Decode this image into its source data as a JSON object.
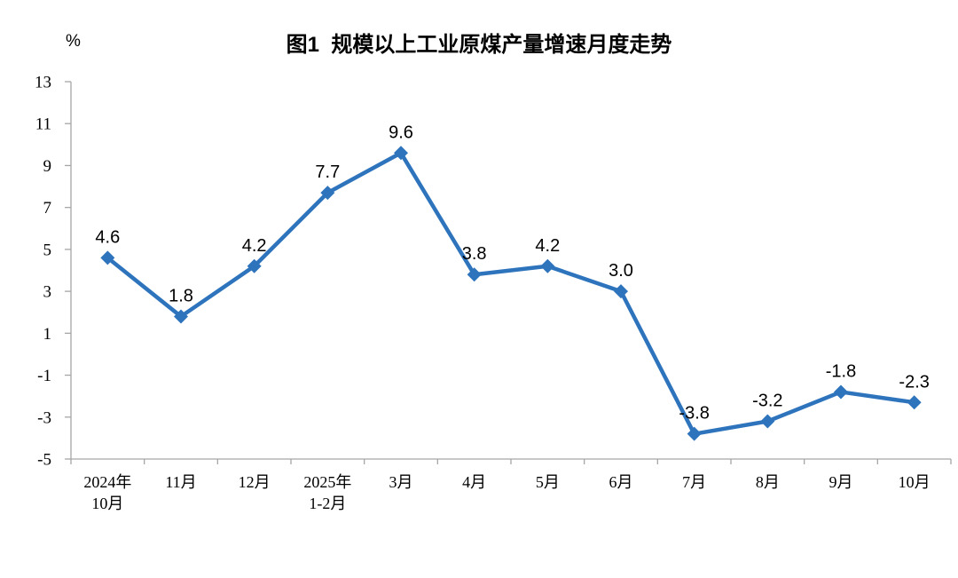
{
  "chart_data": {
    "type": "line",
    "title": "图1  规模以上工业原煤产量增速月度走势",
    "ylabel": "%",
    "xlabel": "",
    "categories": [
      "2024年\n10月",
      "11月",
      "12月",
      "2025年\n1-2月",
      "3月",
      "4月",
      "5月",
      "6月",
      "7月",
      "8月",
      "9月",
      "10月"
    ],
    "values": [
      4.6,
      1.8,
      4.2,
      7.7,
      9.6,
      3.8,
      4.2,
      3.0,
      -3.8,
      -3.2,
      -1.8,
      -2.3
    ],
    "point_labels": [
      "4.6",
      "1.8",
      "4.2",
      "7.7",
      "9.6",
      "3.8",
      "4.2",
      "3.0",
      "-3.8",
      "-3.2",
      "-1.8",
      "-2.3"
    ],
    "ylim": [
      -5,
      13
    ],
    "yticks": [
      13,
      11,
      9,
      7,
      5,
      3,
      1,
      -1,
      -3,
      -5
    ],
    "grid": false,
    "legend": "none",
    "marker": "diamond",
    "colors": {
      "line": "#2E74BD",
      "marker": "#2E74BD",
      "axis": "#A6A6A6",
      "text": "#000000",
      "background": "#FFFFFF"
    }
  }
}
